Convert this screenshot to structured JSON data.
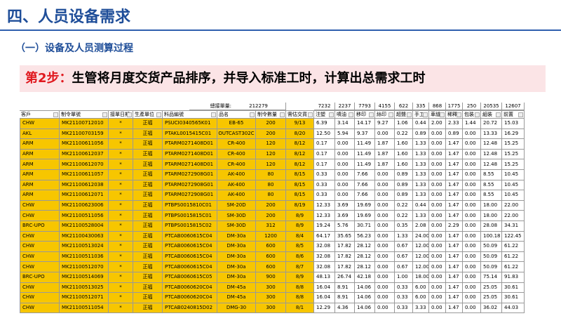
{
  "header": {
    "title": "四、人员设备需求",
    "subtitle": "（一）设备及人员测算过程"
  },
  "step": {
    "label": "第2步：",
    "text": "生管将月度交货产品排序，并导入标准工时，计算出总需求工时"
  },
  "table": {
    "total_label": "總接單量:",
    "total_value": "212279",
    "totals": [
      "7232",
      "2237",
      "7793",
      "4155",
      "622",
      "335",
      "868",
      "1775",
      "250",
      "20535",
      "12607"
    ],
    "headers": [
      "客戶",
      "制令單號",
      "接單日期",
      "生產單位",
      "料品編號",
      "品名",
      "制令數量",
      "需估交貨",
      "注塑",
      "噴油",
      "移印",
      "絲印",
      "超聲",
      "手工",
      "車縫",
      "稀釋",
      "包裝",
      "組裝",
      "前置"
    ],
    "rows": [
      [
        "CHW",
        "MK21100712010",
        "*",
        "正福",
        "PSUCI0340565K01",
        "EB-65",
        "200",
        "9/13",
        "6.39",
        "3.14",
        "14.17",
        "9.27",
        "1.06",
        "0.44",
        "2.00",
        "2.33",
        "1.44",
        "20.72",
        "15.03"
      ],
      [
        "AKL",
        "MK21100703159",
        "*",
        "正福",
        "PTAKL0015415C01",
        "OUTCAST302C",
        "200",
        "8/20",
        "12.50",
        "5.94",
        "9.37",
        "0.00",
        "0.22",
        "0.89",
        "0.00",
        "0.89",
        "0.00",
        "13.33",
        "16.29"
      ],
      [
        "ARM",
        "MK21100611056",
        "*",
        "正福",
        "PTARM0271408D01",
        "CR-400",
        "120",
        "8/12",
        "0.17",
        "0.00",
        "11.49",
        "1.87",
        "1.60",
        "1.33",
        "0.00",
        "1.47",
        "0.00",
        "12.48",
        "15.25"
      ],
      [
        "ARM",
        "MK21100612037",
        "*",
        "正福",
        "PTARM0271408D01",
        "CR-400",
        "120",
        "8/12",
        "0.17",
        "0.00",
        "11.49",
        "1.87",
        "1.60",
        "1.33",
        "0.00",
        "1.47",
        "0.00",
        "12.48",
        "15.25"
      ],
      [
        "ARM",
        "MK21100612070",
        "*",
        "正福",
        "PTARM0271408D01",
        "CR-400",
        "120",
        "8/12",
        "0.17",
        "0.00",
        "11.49",
        "1.87",
        "1.60",
        "1.33",
        "0.00",
        "1.47",
        "0.00",
        "12.48",
        "15.25"
      ],
      [
        "ARM",
        "MK21100611057",
        "*",
        "正福",
        "PTARM0272908G01",
        "AK-400",
        "80",
        "8/15",
        "0.33",
        "0.00",
        "7.66",
        "0.00",
        "0.89",
        "1.33",
        "0.00",
        "1.47",
        "0.00",
        "8.55",
        "10.45"
      ],
      [
        "ARM",
        "MK21100612038",
        "*",
        "正福",
        "PTARM0272908G01",
        "AK-400",
        "80",
        "8/15",
        "0.33",
        "0.00",
        "7.66",
        "0.00",
        "0.89",
        "1.33",
        "0.00",
        "1.47",
        "0.00",
        "8.55",
        "10.45"
      ],
      [
        "ARM",
        "MK21100612071",
        "*",
        "正福",
        "PTARM0272908G01",
        "AK-400",
        "80",
        "8/15",
        "0.33",
        "0.00",
        "7.66",
        "0.00",
        "0.89",
        "1.33",
        "0.00",
        "1.47",
        "0.00",
        "8.55",
        "10.45"
      ],
      [
        "CHW",
        "MK21100623006",
        "*",
        "正福",
        "PTBPS0015810C01",
        "SM-20D",
        "200",
        "8/19",
        "12.33",
        "3.69",
        "19.69",
        "0.00",
        "0.22",
        "0.44",
        "0.00",
        "1.47",
        "0.00",
        "18.00",
        "22.00"
      ],
      [
        "CHW",
        "MK21100511056",
        "*",
        "正福",
        "PTBPS0015815C01",
        "SM-30D",
        "200",
        "8/9",
        "12.33",
        "3.69",
        "19.69",
        "0.00",
        "0.22",
        "1.33",
        "0.00",
        "1.47",
        "0.00",
        "18.00",
        "22.00"
      ],
      [
        "BRC-UPO",
        "MK21100528004",
        "*",
        "正福",
        "PTBPS0015815C02",
        "SM-30D",
        "312",
        "8/9",
        "19.24",
        "5.76",
        "30.71",
        "0.00",
        "0.35",
        "2.08",
        "0.00",
        "2.29",
        "0.00",
        "28.08",
        "34.31"
      ],
      [
        "CHW",
        "MK21100430063",
        "*",
        "正福",
        "PTCAB0060615C04",
        "DM-30a",
        "1200",
        "8/4",
        "64.17",
        "35.65",
        "56.23",
        "0.00",
        "1.33",
        "24.00",
        "0.00",
        "1.47",
        "0.00",
        "100.18",
        "122.45"
      ],
      [
        "CHW",
        "MK21100513024",
        "*",
        "正福",
        "PTCAB0060615C04",
        "DM-30a",
        "600",
        "8/5",
        "32.08",
        "17.82",
        "28.12",
        "0.00",
        "0.67",
        "12.00",
        "0.00",
        "1.47",
        "0.00",
        "50.09",
        "61.22"
      ],
      [
        "CHW",
        "MK21100511036",
        "*",
        "正福",
        "PTCAB0060615C04",
        "DM-30a",
        "600",
        "8/6",
        "32.08",
        "17.82",
        "28.12",
        "0.00",
        "0.67",
        "12.00",
        "0.00",
        "1.47",
        "0.00",
        "50.09",
        "61.22"
      ],
      [
        "CHW",
        "MK21100512070",
        "*",
        "正福",
        "PTCAB0060615C04",
        "DM-30a",
        "600",
        "8/7",
        "32.08",
        "17.82",
        "28.12",
        "0.00",
        "0.67",
        "12.00",
        "0.00",
        "1.47",
        "0.00",
        "50.09",
        "61.22"
      ],
      [
        "BRC-UPO",
        "MK21100514069",
        "*",
        "正福",
        "PTCAB0060615C05",
        "DM-30a",
        "900",
        "8/9",
        "48.13",
        "26.74",
        "42.18",
        "0.00",
        "1.00",
        "18.00",
        "0.00",
        "1.47",
        "0.00",
        "75.14",
        "91.83"
      ],
      [
        "CHW",
        "MK21100513025",
        "*",
        "正福",
        "PTCAB0060620C04",
        "DM-45a",
        "300",
        "8/8",
        "16.04",
        "8.91",
        "14.06",
        "0.00",
        "0.33",
        "6.00",
        "0.00",
        "1.47",
        "0.00",
        "25.05",
        "30.61"
      ],
      [
        "CHW",
        "MK21100512071",
        "*",
        "正福",
        "PTCAB0060620C04",
        "DM-45a",
        "300",
        "8/8",
        "16.04",
        "8.91",
        "14.06",
        "0.00",
        "0.33",
        "6.00",
        "0.00",
        "1.47",
        "0.00",
        "25.05",
        "30.61"
      ],
      [
        "CHW",
        "MK21100511054",
        "*",
        "正福",
        "PTCAB0240815D02",
        "DMG-30",
        "300",
        "8/1",
        "12.29",
        "4.36",
        "14.06",
        "0.00",
        "0.33",
        "3.33",
        "0.00",
        "1.47",
        "0.00",
        "36.02",
        "44.03"
      ]
    ]
  }
}
